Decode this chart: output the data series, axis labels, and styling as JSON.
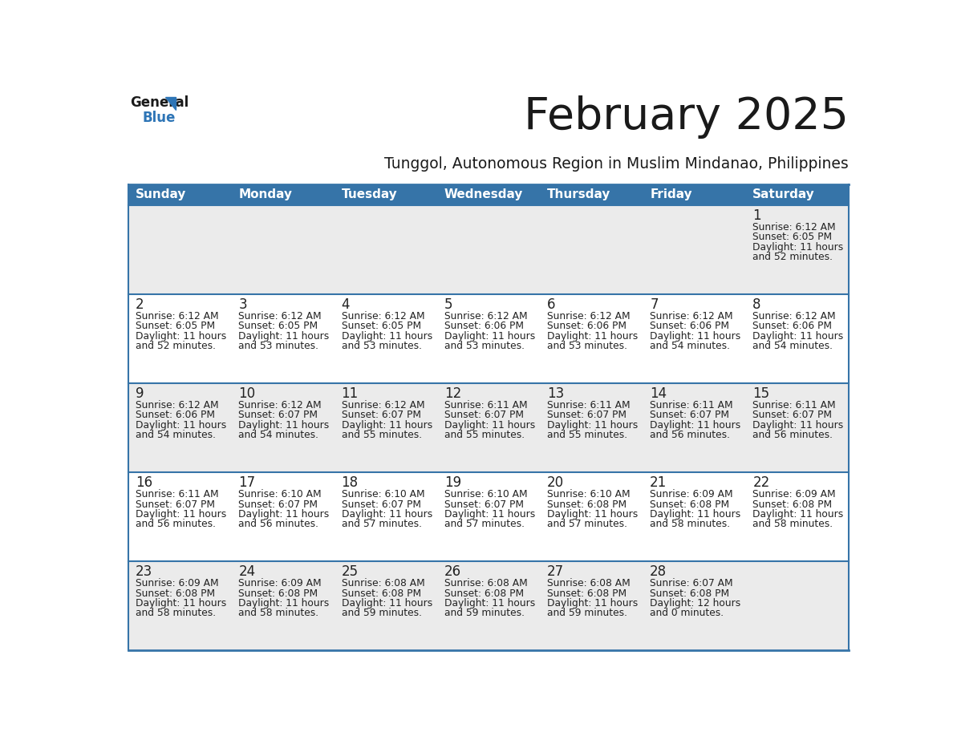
{
  "title": "February 2025",
  "subtitle": "Tunggol, Autonomous Region in Muslim Mindanao, Philippines",
  "header_bg_color": "#3674A8",
  "header_text_color": "#FFFFFF",
  "cell_bg_odd": "#EBEBEB",
  "cell_bg_even": "#FFFFFF",
  "day_number_color": "#222222",
  "text_color": "#222222",
  "row_border_color": "#3674A8",
  "days_of_week": [
    "Sunday",
    "Monday",
    "Tuesday",
    "Wednesday",
    "Thursday",
    "Friday",
    "Saturday"
  ],
  "calendar_data": [
    [
      null,
      null,
      null,
      null,
      null,
      null,
      {
        "day": 1,
        "sunrise": "6:12 AM",
        "sunset": "6:05 PM",
        "daylight_line1": "Daylight: 11 hours",
        "daylight_line2": "and 52 minutes."
      }
    ],
    [
      {
        "day": 2,
        "sunrise": "6:12 AM",
        "sunset": "6:05 PM",
        "daylight_line1": "Daylight: 11 hours",
        "daylight_line2": "and 52 minutes."
      },
      {
        "day": 3,
        "sunrise": "6:12 AM",
        "sunset": "6:05 PM",
        "daylight_line1": "Daylight: 11 hours",
        "daylight_line2": "and 53 minutes."
      },
      {
        "day": 4,
        "sunrise": "6:12 AM",
        "sunset": "6:05 PM",
        "daylight_line1": "Daylight: 11 hours",
        "daylight_line2": "and 53 minutes."
      },
      {
        "day": 5,
        "sunrise": "6:12 AM",
        "sunset": "6:06 PM",
        "daylight_line1": "Daylight: 11 hours",
        "daylight_line2": "and 53 minutes."
      },
      {
        "day": 6,
        "sunrise": "6:12 AM",
        "sunset": "6:06 PM",
        "daylight_line1": "Daylight: 11 hours",
        "daylight_line2": "and 53 minutes."
      },
      {
        "day": 7,
        "sunrise": "6:12 AM",
        "sunset": "6:06 PM",
        "daylight_line1": "Daylight: 11 hours",
        "daylight_line2": "and 54 minutes."
      },
      {
        "day": 8,
        "sunrise": "6:12 AM",
        "sunset": "6:06 PM",
        "daylight_line1": "Daylight: 11 hours",
        "daylight_line2": "and 54 minutes."
      }
    ],
    [
      {
        "day": 9,
        "sunrise": "6:12 AM",
        "sunset": "6:06 PM",
        "daylight_line1": "Daylight: 11 hours",
        "daylight_line2": "and 54 minutes."
      },
      {
        "day": 10,
        "sunrise": "6:12 AM",
        "sunset": "6:07 PM",
        "daylight_line1": "Daylight: 11 hours",
        "daylight_line2": "and 54 minutes."
      },
      {
        "day": 11,
        "sunrise": "6:12 AM",
        "sunset": "6:07 PM",
        "daylight_line1": "Daylight: 11 hours",
        "daylight_line2": "and 55 minutes."
      },
      {
        "day": 12,
        "sunrise": "6:11 AM",
        "sunset": "6:07 PM",
        "daylight_line1": "Daylight: 11 hours",
        "daylight_line2": "and 55 minutes."
      },
      {
        "day": 13,
        "sunrise": "6:11 AM",
        "sunset": "6:07 PM",
        "daylight_line1": "Daylight: 11 hours",
        "daylight_line2": "and 55 minutes."
      },
      {
        "day": 14,
        "sunrise": "6:11 AM",
        "sunset": "6:07 PM",
        "daylight_line1": "Daylight: 11 hours",
        "daylight_line2": "and 56 minutes."
      },
      {
        "day": 15,
        "sunrise": "6:11 AM",
        "sunset": "6:07 PM",
        "daylight_line1": "Daylight: 11 hours",
        "daylight_line2": "and 56 minutes."
      }
    ],
    [
      {
        "day": 16,
        "sunrise": "6:11 AM",
        "sunset": "6:07 PM",
        "daylight_line1": "Daylight: 11 hours",
        "daylight_line2": "and 56 minutes."
      },
      {
        "day": 17,
        "sunrise": "6:10 AM",
        "sunset": "6:07 PM",
        "daylight_line1": "Daylight: 11 hours",
        "daylight_line2": "and 56 minutes."
      },
      {
        "day": 18,
        "sunrise": "6:10 AM",
        "sunset": "6:07 PM",
        "daylight_line1": "Daylight: 11 hours",
        "daylight_line2": "and 57 minutes."
      },
      {
        "day": 19,
        "sunrise": "6:10 AM",
        "sunset": "6:07 PM",
        "daylight_line1": "Daylight: 11 hours",
        "daylight_line2": "and 57 minutes."
      },
      {
        "day": 20,
        "sunrise": "6:10 AM",
        "sunset": "6:08 PM",
        "daylight_line1": "Daylight: 11 hours",
        "daylight_line2": "and 57 minutes."
      },
      {
        "day": 21,
        "sunrise": "6:09 AM",
        "sunset": "6:08 PM",
        "daylight_line1": "Daylight: 11 hours",
        "daylight_line2": "and 58 minutes."
      },
      {
        "day": 22,
        "sunrise": "6:09 AM",
        "sunset": "6:08 PM",
        "daylight_line1": "Daylight: 11 hours",
        "daylight_line2": "and 58 minutes."
      }
    ],
    [
      {
        "day": 23,
        "sunrise": "6:09 AM",
        "sunset": "6:08 PM",
        "daylight_line1": "Daylight: 11 hours",
        "daylight_line2": "and 58 minutes."
      },
      {
        "day": 24,
        "sunrise": "6:09 AM",
        "sunset": "6:08 PM",
        "daylight_line1": "Daylight: 11 hours",
        "daylight_line2": "and 58 minutes."
      },
      {
        "day": 25,
        "sunrise": "6:08 AM",
        "sunset": "6:08 PM",
        "daylight_line1": "Daylight: 11 hours",
        "daylight_line2": "and 59 minutes."
      },
      {
        "day": 26,
        "sunrise": "6:08 AM",
        "sunset": "6:08 PM",
        "daylight_line1": "Daylight: 11 hours",
        "daylight_line2": "and 59 minutes."
      },
      {
        "day": 27,
        "sunrise": "6:08 AM",
        "sunset": "6:08 PM",
        "daylight_line1": "Daylight: 11 hours",
        "daylight_line2": "and 59 minutes."
      },
      {
        "day": 28,
        "sunrise": "6:07 AM",
        "sunset": "6:08 PM",
        "daylight_line1": "Daylight: 12 hours",
        "daylight_line2": "and 0 minutes."
      },
      null
    ]
  ]
}
